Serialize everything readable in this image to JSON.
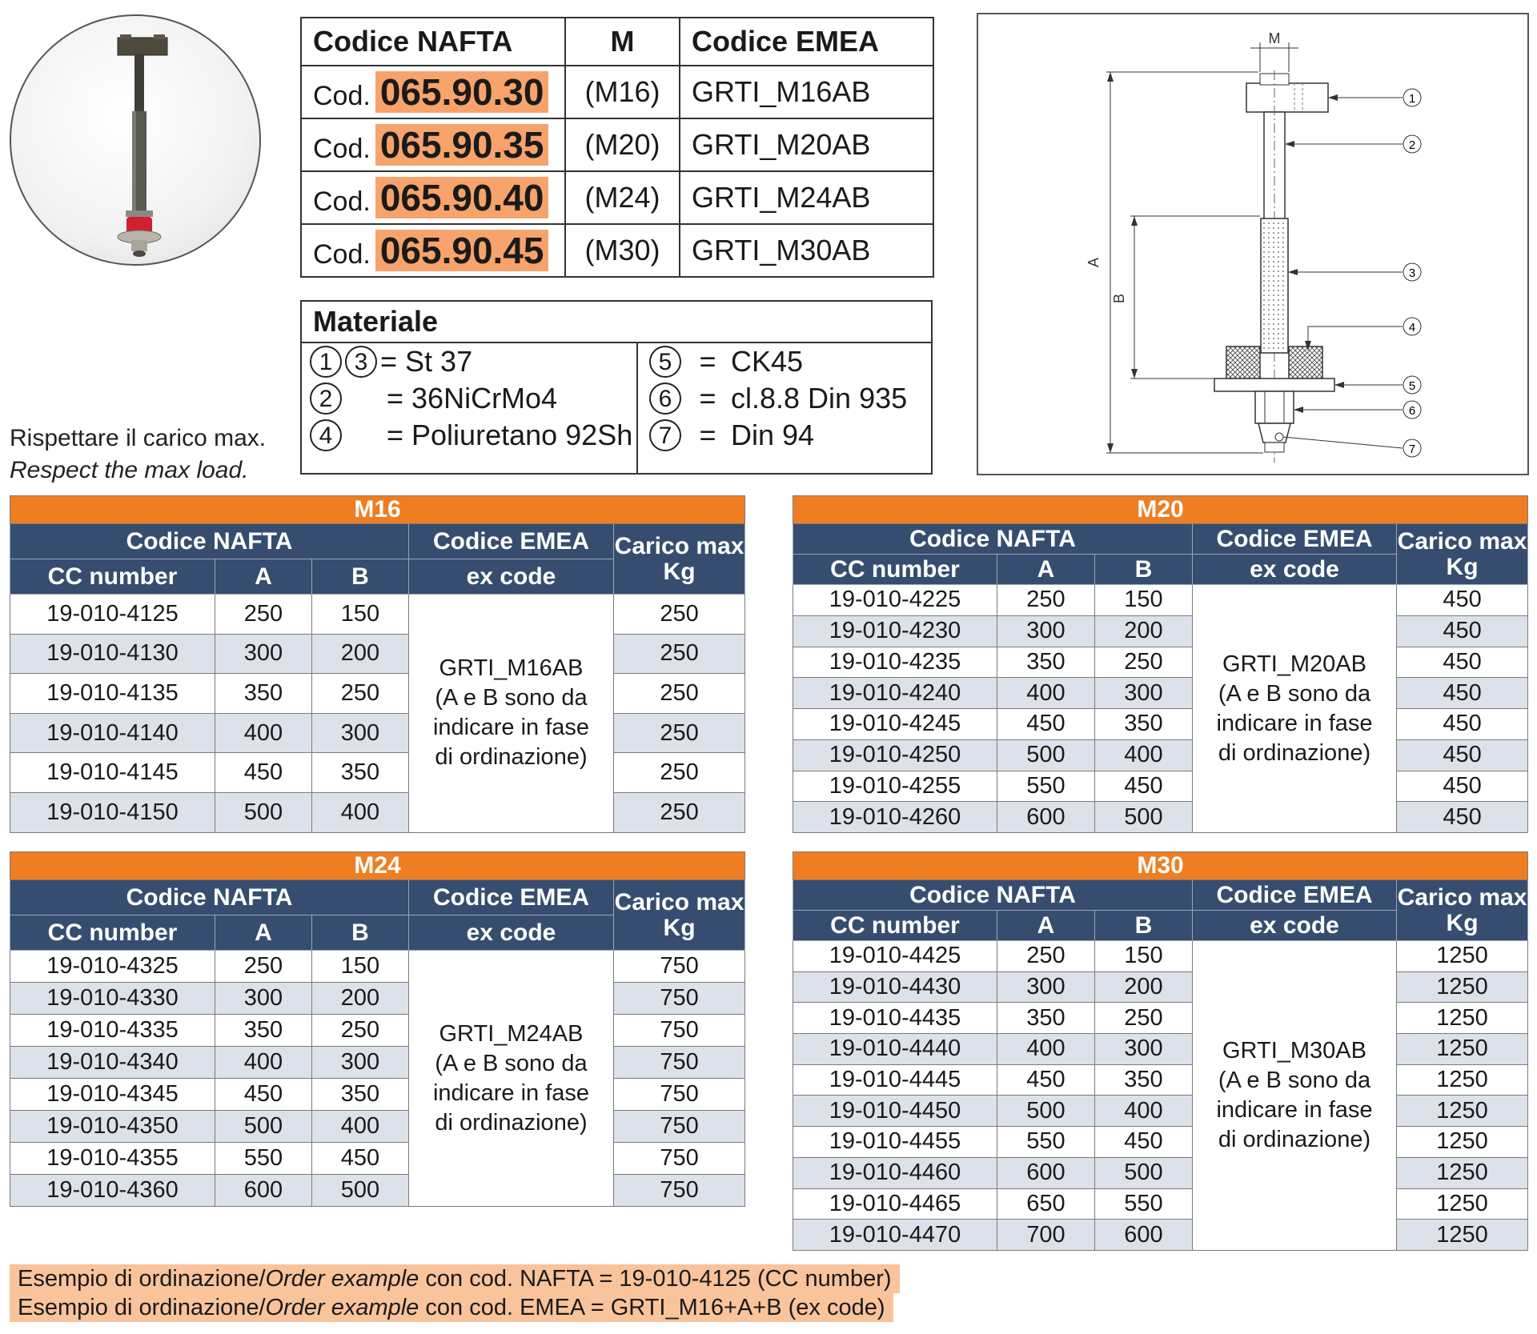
{
  "header_table": {
    "col_nafta": "Codice NAFTA",
    "col_m": "M",
    "col_emea": "Codice EMEA",
    "rows": [
      {
        "prefix": "Cod.",
        "code": "065.90.30",
        "m": "(M16)",
        "emea": "GRTI_M16AB"
      },
      {
        "prefix": "Cod.",
        "code": "065.90.35",
        "m": "(M20)",
        "emea": "GRTI_M20AB"
      },
      {
        "prefix": "Cod.",
        "code": "065.90.40",
        "m": "(M24)",
        "emea": "GRTI_M24AB"
      },
      {
        "prefix": "Cod.",
        "code": "065.90.45",
        "m": "(M30)",
        "emea": "GRTI_M30AB"
      }
    ]
  },
  "materiale": {
    "title": "Materiale",
    "left": [
      {
        "nums": [
          "1",
          "3"
        ],
        "text": "= St 37"
      },
      {
        "nums": [
          "2"
        ],
        "text": "= 36NiCrMo4"
      },
      {
        "nums": [
          "4"
        ],
        "text": "= Poliuretano 92Sh"
      }
    ],
    "right": [
      {
        "num": "5",
        "eq": "=",
        "text": "CK45"
      },
      {
        "num": "6",
        "eq": "=",
        "text": "cl.8.8 Din 935"
      },
      {
        "num": "7",
        "eq": "=",
        "text": "Din 94"
      }
    ]
  },
  "drawing": {
    "dim_m": "M",
    "dim_a": "A",
    "dim_b": "B",
    "callouts": [
      "1",
      "2",
      "3",
      "4",
      "5",
      "6",
      "7"
    ]
  },
  "note": {
    "it": "Rispettare il carico max.",
    "en": "Respect the max load."
  },
  "spec_tables": [
    {
      "title": "M16",
      "h_nafta": "Codice NAFTA",
      "h_emea": "Codice EMEA",
      "h_carico": "Carico max Kg",
      "h_cc": "CC number",
      "h_a": "A",
      "h_b": "B",
      "h_ex": "ex code",
      "emea_lines": [
        "GRTI_M16AB",
        "(A e B sono da",
        "indicare in fase",
        "di ordinazione)"
      ],
      "rows": [
        [
          "19-010-4125",
          "250",
          "150",
          "250"
        ],
        [
          "19-010-4130",
          "300",
          "200",
          "250"
        ],
        [
          "19-010-4135",
          "350",
          "250",
          "250"
        ],
        [
          "19-010-4140",
          "400",
          "300",
          "250"
        ],
        [
          "19-010-4145",
          "450",
          "350",
          "250"
        ],
        [
          "19-010-4150",
          "500",
          "400",
          "250"
        ]
      ]
    },
    {
      "title": "M20",
      "h_nafta": "Codice NAFTA",
      "h_emea": "Codice EMEA",
      "h_carico": "Carico max Kg",
      "h_cc": "CC number",
      "h_a": "A",
      "h_b": "B",
      "h_ex": "ex code",
      "emea_lines": [
        "GRTI_M20AB",
        "(A e B sono da",
        "indicare in fase",
        "di ordinazione)"
      ],
      "rows": [
        [
          "19-010-4225",
          "250",
          "150",
          "450"
        ],
        [
          "19-010-4230",
          "300",
          "200",
          "450"
        ],
        [
          "19-010-4235",
          "350",
          "250",
          "450"
        ],
        [
          "19-010-4240",
          "400",
          "300",
          "450"
        ],
        [
          "19-010-4245",
          "450",
          "350",
          "450"
        ],
        [
          "19-010-4250",
          "500",
          "400",
          "450"
        ],
        [
          "19-010-4255",
          "550",
          "450",
          "450"
        ],
        [
          "19-010-4260",
          "600",
          "500",
          "450"
        ]
      ]
    },
    {
      "title": "M24",
      "h_nafta": "Codice NAFTA",
      "h_emea": "Codice EMEA",
      "h_carico": "Carico max Kg",
      "h_cc": "CC number",
      "h_a": "A",
      "h_b": "B",
      "h_ex": "ex code",
      "emea_lines": [
        "GRTI_M24AB",
        "(A e B sono da",
        "indicare in fase",
        "di ordinazione)"
      ],
      "rows": [
        [
          "19-010-4325",
          "250",
          "150",
          "750"
        ],
        [
          "19-010-4330",
          "300",
          "200",
          "750"
        ],
        [
          "19-010-4335",
          "350",
          "250",
          "750"
        ],
        [
          "19-010-4340",
          "400",
          "300",
          "750"
        ],
        [
          "19-010-4345",
          "450",
          "350",
          "750"
        ],
        [
          "19-010-4350",
          "500",
          "400",
          "750"
        ],
        [
          "19-010-4355",
          "550",
          "450",
          "750"
        ],
        [
          "19-010-4360",
          "600",
          "500",
          "750"
        ]
      ]
    },
    {
      "title": "M30",
      "h_nafta": "Codice NAFTA",
      "h_emea": "Codice EMEA",
      "h_carico": "Carico max Kg",
      "h_cc": "CC number",
      "h_a": "A",
      "h_b": "B",
      "h_ex": "ex code",
      "emea_lines": [
        "GRTI_M30AB",
        "(A e B sono da",
        "indicare in fase",
        "di ordinazione)"
      ],
      "rows": [
        [
          "19-010-4425",
          "250",
          "150",
          "1250"
        ],
        [
          "19-010-4430",
          "300",
          "200",
          "1250"
        ],
        [
          "19-010-4435",
          "350",
          "250",
          "1250"
        ],
        [
          "19-010-4440",
          "400",
          "300",
          "1250"
        ],
        [
          "19-010-4445",
          "450",
          "350",
          "1250"
        ],
        [
          "19-010-4450",
          "500",
          "400",
          "1250"
        ],
        [
          "19-010-4455",
          "550",
          "450",
          "1250"
        ],
        [
          "19-010-4460",
          "600",
          "500",
          "1250"
        ],
        [
          "19-010-4465",
          "650",
          "550",
          "1250"
        ],
        [
          "19-010-4470",
          "700",
          "600",
          "1250"
        ]
      ]
    }
  ],
  "example": {
    "line1": {
      "a": "Esempio di ordinazione/",
      "b": "Order example",
      "c": " con cod. NAFTA = 19-010-4125 (CC number)"
    },
    "line2": {
      "a": "Esempio di ordinazione/",
      "b": "Order example",
      "c": " con cod. EMEA = GRTI_M16+A+B (ex code)"
    }
  },
  "colors": {
    "orange": "#ef7d22",
    "navy": "#364d6f",
    "stripe": "#dde1ea",
    "highlight": "#f7a36b",
    "example_bg": "#f9c39b"
  }
}
